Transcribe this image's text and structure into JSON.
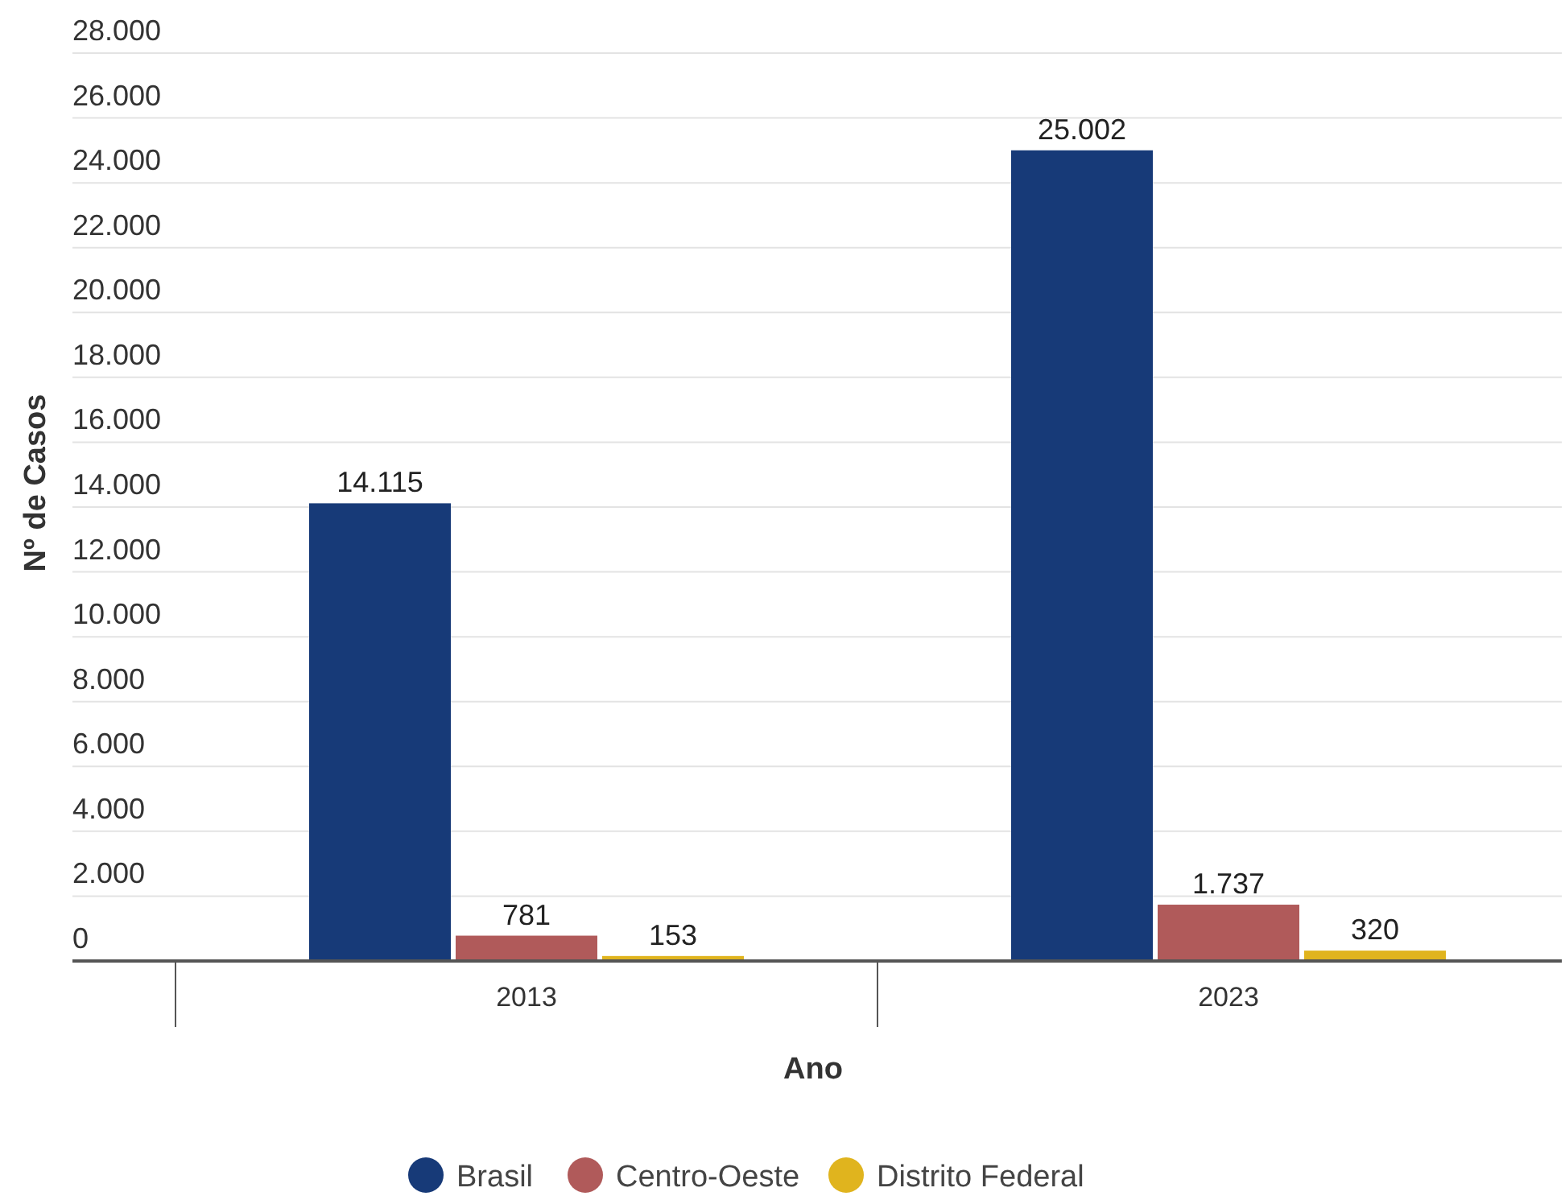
{
  "chart_data": {
    "type": "bar",
    "xlabel": "Ano",
    "ylabel": "Nº de Casos",
    "categories": [
      "2013",
      "2023"
    ],
    "series": [
      {
        "name": "Brasil",
        "color": "#173a78",
        "values": [
          14115,
          25002
        ],
        "value_labels": [
          "14.115",
          "25.002"
        ]
      },
      {
        "name": "Centro-Oeste",
        "color": "#b05a5a",
        "values": [
          781,
          1737
        ],
        "value_labels": [
          "781",
          "1.737"
        ]
      },
      {
        "name": "Distrito Federal",
        "color": "#e0b41e",
        "values": [
          153,
          320
        ],
        "value_labels": [
          "153",
          "320"
        ]
      }
    ],
    "ylim": [
      0,
      28000
    ],
    "yticks": [
      0,
      {
        "value": 2000,
        "label": "2.000"
      },
      {
        "value": 4000,
        "label": "4.000"
      },
      {
        "value": 6000,
        "label": "6.000"
      },
      {
        "value": 8000,
        "label": "8.000"
      },
      {
        "value": 10000,
        "label": "10.000"
      },
      {
        "value": 12000,
        "label": "12.000"
      },
      {
        "value": 14000,
        "label": "14.000"
      },
      {
        "value": 16000,
        "label": "16.000"
      },
      {
        "value": 18000,
        "label": "18.000"
      },
      {
        "value": 20000,
        "label": "20.000"
      },
      {
        "value": 22000,
        "label": "22.000"
      },
      {
        "value": 24000,
        "label": "24.000"
      },
      {
        "value": 26000,
        "label": "26.000"
      },
      {
        "value": 28000,
        "label": "28.000"
      }
    ],
    "grid": "y",
    "legend": "bottom"
  }
}
